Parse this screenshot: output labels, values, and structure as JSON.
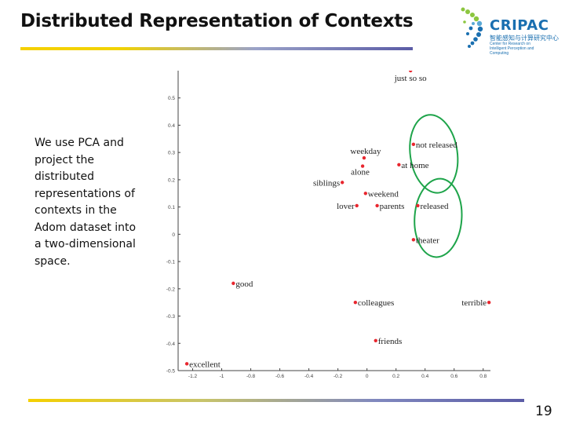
{
  "slide": {
    "title": "Distributed Representation of Contexts",
    "description": "We use PCA and project the distributed representations of contexts in the Adom dataset into a two-dimensional space.",
    "page_number": "19"
  },
  "logo": {
    "name": "CRIPAC",
    "chinese": "智能感知与计算研究中心",
    "english": "Center for Research on Intelligent Perception and Computing",
    "colors": {
      "primary": "#1a6fb0",
      "accent": "#8cc63f"
    }
  },
  "colors": {
    "point": "#e8262e",
    "circle": "#1ea44a",
    "axis": "#444444",
    "label": "#222222",
    "rule_start": "#f5d000",
    "rule_end": "#5b5ca6"
  },
  "chart_data": {
    "type": "scatter",
    "title": "",
    "xlabel": "",
    "ylabel": "",
    "xlim": [
      -1.3,
      0.85
    ],
    "ylim": [
      -0.5,
      0.6
    ],
    "x_ticks": [
      "-1.2",
      "-1",
      "-0.8",
      "-0.6",
      "-0.4",
      "-0.2",
      "0",
      "0.2",
      "0.4",
      "0.6",
      "0.8"
    ],
    "y_ticks": [
      "-0.5",
      "-0.4",
      "-0.3",
      "-0.2",
      "-0.1",
      "0",
      "0.1",
      "0.2",
      "0.3",
      "0.4",
      "0.5"
    ],
    "grid": false,
    "points": [
      {
        "label": "just so so",
        "x": 0.3,
        "y": 0.6
      },
      {
        "label": "not released",
        "x": 0.32,
        "y": 0.33
      },
      {
        "label": "weekday",
        "x": -0.02,
        "y": 0.28
      },
      {
        "label": "alone",
        "x": -0.03,
        "y": 0.25
      },
      {
        "label": "at home",
        "x": 0.22,
        "y": 0.255
      },
      {
        "label": "siblings",
        "x": -0.17,
        "y": 0.19
      },
      {
        "label": "weekend",
        "x": -0.01,
        "y": 0.15
      },
      {
        "label": "lover",
        "x": -0.07,
        "y": 0.105
      },
      {
        "label": "parents",
        "x": 0.07,
        "y": 0.105
      },
      {
        "label": "released",
        "x": 0.35,
        "y": 0.105
      },
      {
        "label": "theater",
        "x": 0.32,
        "y": -0.02
      },
      {
        "label": "good",
        "x": -0.92,
        "y": -0.18
      },
      {
        "label": "colleagues",
        "x": -0.08,
        "y": -0.25
      },
      {
        "label": "terrible",
        "x": 0.84,
        "y": -0.25
      },
      {
        "label": "friends",
        "x": 0.06,
        "y": -0.39
      },
      {
        "label": "excellent",
        "x": -1.24,
        "y": -0.475
      }
    ],
    "clusters": [
      {
        "center_x": 0.46,
        "center_y": 0.295,
        "members": [
          "not released",
          "at home"
        ]
      },
      {
        "center_x": 0.49,
        "center_y": 0.06,
        "members": [
          "released",
          "theater"
        ]
      }
    ]
  }
}
